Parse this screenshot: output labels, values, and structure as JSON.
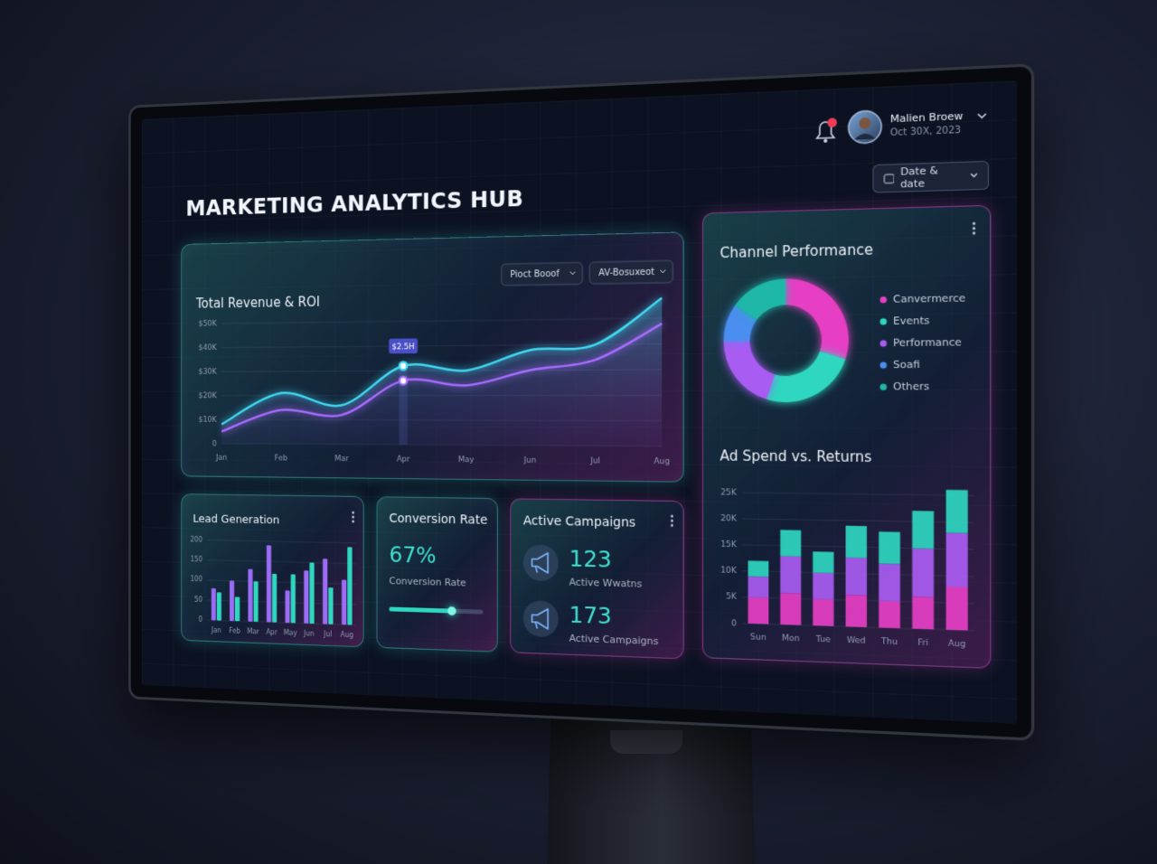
{
  "header": {
    "title": "MARKETING ANALYTICS HUB",
    "user_name": "Malien Broew",
    "user_date": "Oct 30X, 2023",
    "date_button": "Date & date"
  },
  "chart_data": [
    {
      "type": "line",
      "title": "Total Revenue & ROI",
      "filters": [
        "Pioct Booof",
        "AV-Bosuxeot"
      ],
      "annotation": "$2.5H",
      "categories": [
        "Jan",
        "Feb",
        "Mar",
        "Apr",
        "May",
        "Jun",
        "Jul",
        "Aug"
      ],
      "series": [
        {
          "color": "#3fd8f2",
          "values": [
            8000,
            21000,
            16000,
            32000,
            30000,
            38000,
            40000,
            58000
          ]
        },
        {
          "color": "#a76cff",
          "values": [
            5000,
            14000,
            12000,
            26000,
            24000,
            30000,
            34000,
            48000
          ]
        }
      ],
      "ylim": [
        0,
        60000
      ],
      "yticks": [
        0,
        {
          "value": 10000,
          "label": "$10K"
        },
        {
          "value": 20000,
          "label": "$20K"
        },
        {
          "value": 30000,
          "label": "$30K"
        },
        {
          "value": 40000,
          "label": "$40K"
        },
        {
          "value": 50000,
          "label": "$50K"
        }
      ],
      "grid": true
    },
    {
      "type": "pie",
      "title": "Channel Performance",
      "donut": true,
      "categories": [
        "Canvermerce",
        "Events",
        "Performance",
        "Soafi",
        "Others"
      ],
      "values": [
        30,
        25,
        20,
        10,
        15
      ],
      "colors": [
        "#e63fc4",
        "#2fd6c0",
        "#a95cf2",
        "#4a8ef0",
        "#1fb8a8"
      ]
    },
    {
      "type": "stacked_bar",
      "title": "Ad Spend vs. Returns",
      "categories": [
        "Sun",
        "Mon",
        "Tue",
        "Wed",
        "Thu",
        "Fri",
        "Aug"
      ],
      "series": [
        {
          "color": "#e63fc4",
          "values": [
            5000,
            6000,
            5000,
            6000,
            5000,
            6000,
            8000
          ]
        },
        {
          "color": "#a95cf2",
          "values": [
            4000,
            7000,
            5000,
            7000,
            7000,
            9000,
            10000
          ]
        },
        {
          "color": "#2fd6c0",
          "values": [
            3000,
            5000,
            4000,
            6000,
            6000,
            7000,
            8000
          ]
        }
      ],
      "ylim": [
        0,
        27000
      ],
      "yticks": [
        0,
        {
          "value": 5000,
          "label": "5K"
        },
        {
          "value": 10000,
          "label": "10K"
        },
        {
          "value": 15000,
          "label": "15K"
        },
        {
          "value": 20000,
          "label": "20K"
        },
        {
          "value": 25000,
          "label": "25K"
        }
      ],
      "grid": true
    },
    {
      "type": "bar",
      "title": "Lead Generation",
      "categories": [
        "Jan",
        "Feb",
        "Mar",
        "Apr",
        "May",
        "Jun",
        "Jul",
        "Aug"
      ],
      "series": [
        {
          "color": "#9b6cf5",
          "values": [
            80,
            100,
            130,
            190,
            80,
            130,
            160,
            110
          ]
        },
        {
          "color": "#2fd6c0",
          "values": [
            70,
            60,
            100,
            120,
            120,
            150,
            90,
            190
          ]
        }
      ],
      "ylim": [
        0,
        210
      ],
      "yticks": [
        0,
        50,
        100,
        150,
        200
      ],
      "grid": true
    }
  ],
  "conversion": {
    "title": "Conversion Rate",
    "value": 67,
    "value_label": "67%",
    "caption": "Conversion Rate"
  },
  "campaigns": {
    "title": "Active Campaigns",
    "items": [
      {
        "value": 123,
        "caption": "Active Wwatns"
      },
      {
        "value": 173,
        "caption": "Active Campaigns"
      }
    ]
  }
}
